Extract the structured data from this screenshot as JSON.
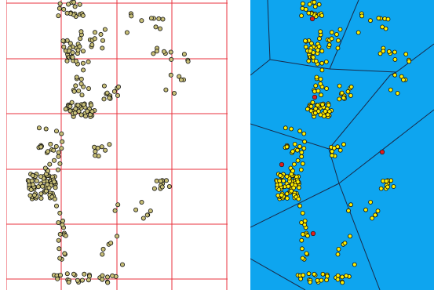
{
  "colors": {
    "grid_line": "#e8323c",
    "left_background": "#ffffff",
    "left_point_fill": "#c8bf78",
    "point_outline": "#111111",
    "right_background": "#0ea5ef",
    "voronoi_edge": "#1a2a48",
    "right_point_fill": "#ffee00",
    "seed_fill": "#e01e1e"
  },
  "panels": {
    "left": {
      "name": "grid-clustered-points-map"
    },
    "right": {
      "name": "voronoi-clustered-points-map"
    }
  }
}
